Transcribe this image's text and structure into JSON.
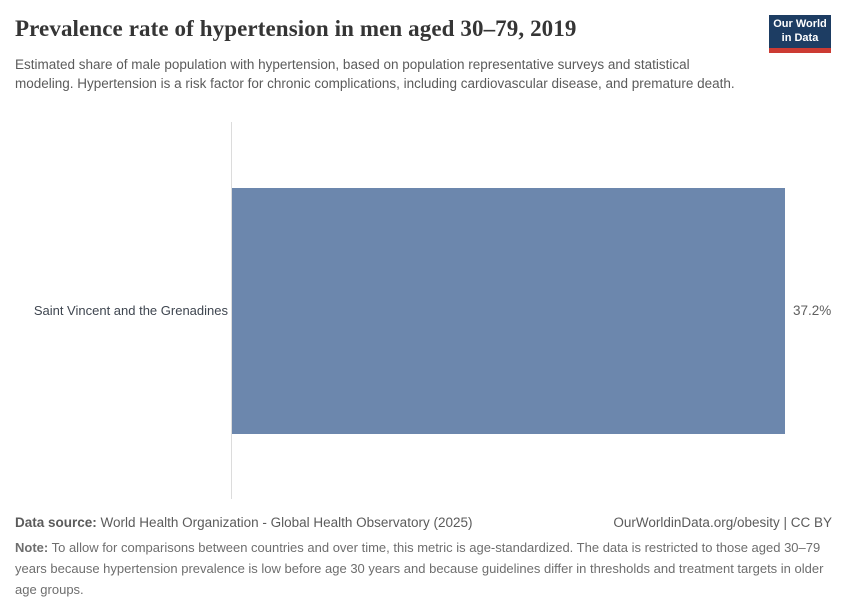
{
  "header": {
    "title": "Prevalence rate of hypertension in men aged 30–79, 2019",
    "subtitle": "Estimated share of male population with hypertension, based on population representative surveys and statistical modeling. Hypertension is a risk factor for chronic complications, including cardiovascular disease, and premature death.",
    "logo": {
      "line1": "Our World",
      "line2": "in Data",
      "bg_color": "#1d3d63",
      "accent_color": "#cc3b33"
    }
  },
  "chart_data": {
    "type": "bar",
    "orientation": "horizontal",
    "title": "Prevalence rate of hypertension in men aged 30–79, 2019",
    "categories": [
      "Saint Vincent and the Grenadines"
    ],
    "values": [
      37.2
    ],
    "value_labels": [
      "37.2%"
    ],
    "xlabel": "",
    "ylabel": "",
    "xlim": [
      0,
      37.2
    ],
    "grid": false,
    "legend": false,
    "bar_color": "#6c87ad"
  },
  "footer": {
    "datasource_label": "Data source:",
    "datasource_text": "World Health Organization - Global Health Observatory (2025)",
    "license_text": "OurWorldinData.org/obesity | CC BY",
    "note_label": "Note:",
    "note_text": "To allow for comparisons between countries and over time, this metric is age-standardized. The data is restricted to those aged 30–79 years because hypertension prevalence is low before age 30 years and because guidelines differ in thresholds and treatment targets in older age groups."
  }
}
